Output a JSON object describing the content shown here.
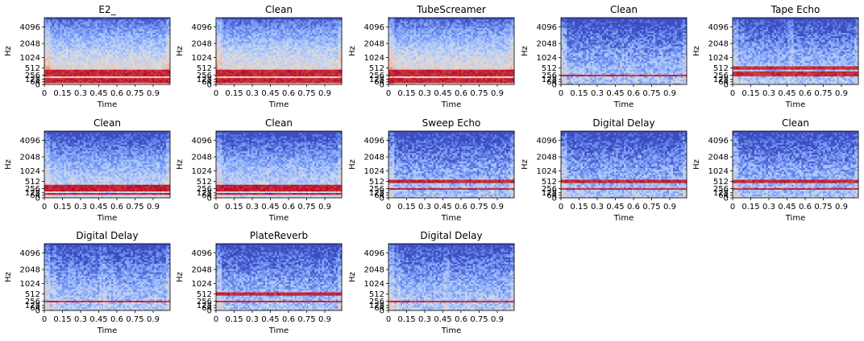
{
  "figure": {
    "colormap": {
      "name": "coolwarm",
      "stops": [
        "#3b4cc0",
        "#6f92f3",
        "#aac7fd",
        "#dddcdc",
        "#f7b89c",
        "#e7745b",
        "#b40426"
      ]
    }
  },
  "chart_data": [
    {
      "type": "heatmap",
      "title": "E2_",
      "xlabel": "Time",
      "ylabel": "Hz",
      "x_ticks": [
        "0",
        "0.15",
        "0.3",
        "0.45",
        "0.6",
        "0.75",
        "0.9"
      ],
      "y_ticks": [
        "0",
        "64",
        "128",
        "256",
        "512",
        "1024",
        "2048",
        "4096"
      ],
      "xlim": [
        0,
        1.04
      ],
      "ylim": [
        0,
        5800
      ],
      "harmonic_lines_hz": [
        82,
        165,
        247,
        330,
        412
      ],
      "style": "tonal-bright"
    },
    {
      "type": "heatmap",
      "title": "Clean",
      "xlabel": "Time",
      "ylabel": "Hz",
      "x_ticks": [
        "0",
        "0.15",
        "0.3",
        "0.45",
        "0.6",
        "0.75",
        "0.9"
      ],
      "y_ticks": [
        "0",
        "64",
        "128",
        "256",
        "512",
        "1024",
        "2048",
        "4096"
      ],
      "xlim": [
        0,
        1.04
      ],
      "ylim": [
        0,
        5800
      ],
      "harmonic_lines_hz": [
        82,
        165,
        247,
        330,
        412
      ],
      "style": "tonal-bright"
    },
    {
      "type": "heatmap",
      "title": "TubeScreamer",
      "xlabel": "Time",
      "ylabel": "Hz",
      "x_ticks": [
        "0",
        "0.15",
        "0.3",
        "0.45",
        "0.6",
        "0.75",
        "0.9"
      ],
      "y_ticks": [
        "0",
        "64",
        "128",
        "256",
        "512",
        "1024",
        "2048",
        "4096"
      ],
      "xlim": [
        0,
        1.04
      ],
      "ylim": [
        0,
        5800
      ],
      "harmonic_lines_hz": [
        82,
        165,
        247,
        330,
        412
      ],
      "style": "tonal-bright"
    },
    {
      "type": "heatmap",
      "title": "Clean",
      "xlabel": "Time",
      "ylabel": "Hz",
      "x_ticks": [
        "0",
        "0.15",
        "0.3",
        "0.45",
        "0.6",
        "0.75",
        "0.9"
      ],
      "y_ticks": [
        "0",
        "64",
        "128",
        "256",
        "512",
        "1024",
        "2048",
        "4096"
      ],
      "xlim": [
        0,
        1.04
      ],
      "ylim": [
        0,
        5800
      ],
      "harmonic_lines_hz": [
        262
      ],
      "style": "sparse"
    },
    {
      "type": "heatmap",
      "title": "Tape Echo",
      "xlabel": "Time",
      "ylabel": "Hz",
      "x_ticks": [
        "0",
        "0.15",
        "0.3",
        "0.45",
        "0.6",
        "0.75",
        "0.9"
      ],
      "y_ticks": [
        "0",
        "64",
        "128",
        "256",
        "512",
        "1024",
        "2048",
        "4096"
      ],
      "xlim": [
        0,
        1.04
      ],
      "ylim": [
        0,
        5800
      ],
      "harmonic_lines_hz": [
        262,
        330,
        524
      ],
      "style": "echo"
    },
    {
      "type": "heatmap",
      "title": "Clean",
      "xlabel": "Time",
      "ylabel": "Hz",
      "x_ticks": [
        "0",
        "0.15",
        "0.3",
        "0.45",
        "0.6",
        "0.75",
        "0.9"
      ],
      "y_ticks": [
        "0",
        "64",
        "128",
        "256",
        "512",
        "1024",
        "2048",
        "4096"
      ],
      "xlim": [
        0,
        1.04
      ],
      "ylim": [
        0,
        5800
      ],
      "harmonic_lines_hz": [
        110,
        220,
        330
      ],
      "style": "tonal"
    },
    {
      "type": "heatmap",
      "title": "Clean",
      "xlabel": "Time",
      "ylabel": "Hz",
      "x_ticks": [
        "0",
        "0.15",
        "0.3",
        "0.45",
        "0.6",
        "0.75",
        "0.9"
      ],
      "y_ticks": [
        "0",
        "64",
        "128",
        "256",
        "512",
        "1024",
        "2048",
        "4096"
      ],
      "xlim": [
        0,
        1.04
      ],
      "ylim": [
        0,
        5800
      ],
      "harmonic_lines_hz": [
        110,
        220,
        330
      ],
      "style": "tonal"
    },
    {
      "type": "heatmap",
      "title": "Sweep Echo",
      "xlabel": "Time",
      "ylabel": "Hz",
      "x_ticks": [
        "0",
        "0.15",
        "0.3",
        "0.45",
        "0.6",
        "0.75",
        "0.9"
      ],
      "y_ticks": [
        "0",
        "64",
        "128",
        "256",
        "512",
        "1024",
        "2048",
        "4096"
      ],
      "xlim": [
        0,
        1.04
      ],
      "ylim": [
        0,
        5800
      ],
      "harmonic_lines_hz": [
        262,
        524
      ],
      "style": "sparse"
    },
    {
      "type": "heatmap",
      "title": "Digital Delay",
      "xlabel": "Time",
      "ylabel": "Hz",
      "x_ticks": [
        "0",
        "0.15",
        "0.3",
        "0.45",
        "0.6",
        "0.75",
        "0.9"
      ],
      "y_ticks": [
        "0",
        "64",
        "128",
        "256",
        "512",
        "1024",
        "2048",
        "4096"
      ],
      "xlim": [
        0,
        1.04
      ],
      "ylim": [
        0,
        5800
      ],
      "harmonic_lines_hz": [
        262,
        524
      ],
      "style": "sparse"
    },
    {
      "type": "heatmap",
      "title": "Clean",
      "xlabel": "Time",
      "ylabel": "Hz",
      "x_ticks": [
        "0",
        "0.15",
        "0.3",
        "0.45",
        "0.6",
        "0.75",
        "0.9"
      ],
      "y_ticks": [
        "0",
        "64",
        "128",
        "256",
        "512",
        "1024",
        "2048",
        "4096"
      ],
      "xlim": [
        0,
        1.04
      ],
      "ylim": [
        0,
        5800
      ],
      "harmonic_lines_hz": [
        262,
        524
      ],
      "style": "sparse"
    },
    {
      "type": "heatmap",
      "title": "Digital Delay",
      "xlabel": "Time",
      "ylabel": "Hz",
      "x_ticks": [
        "0",
        "0.15",
        "0.3",
        "0.45",
        "0.6",
        "0.75",
        "0.9"
      ],
      "y_ticks": [
        "0",
        "64",
        "128",
        "256",
        "512",
        "1024",
        "2048",
        "4096"
      ],
      "xlim": [
        0,
        1.04
      ],
      "ylim": [
        0,
        5800
      ],
      "harmonic_lines_hz": [
        262
      ],
      "style": "echo"
    },
    {
      "type": "heatmap",
      "title": "PlateReverb",
      "xlabel": "Time",
      "ylabel": "Hz",
      "x_ticks": [
        "0",
        "0.15",
        "0.3",
        "0.45",
        "0.6",
        "0.75",
        "0.9"
      ],
      "y_ticks": [
        "0",
        "64",
        "128",
        "256",
        "512",
        "1024",
        "2048",
        "4096"
      ],
      "xlim": [
        0,
        1.04
      ],
      "ylim": [
        0,
        5800
      ],
      "harmonic_lines_hz": [
        262,
        524
      ],
      "style": "sparse"
    },
    {
      "type": "heatmap",
      "title": "Digital Delay",
      "xlabel": "Time",
      "ylabel": "Hz",
      "x_ticks": [
        "0",
        "0.15",
        "0.3",
        "0.45",
        "0.6",
        "0.75",
        "0.9"
      ],
      "y_ticks": [
        "0",
        "64",
        "128",
        "256",
        "512",
        "1024",
        "2048",
        "4096"
      ],
      "xlim": [
        0,
        1.04
      ],
      "ylim": [
        0,
        5800
      ],
      "harmonic_lines_hz": [
        262
      ],
      "style": "echo"
    }
  ]
}
